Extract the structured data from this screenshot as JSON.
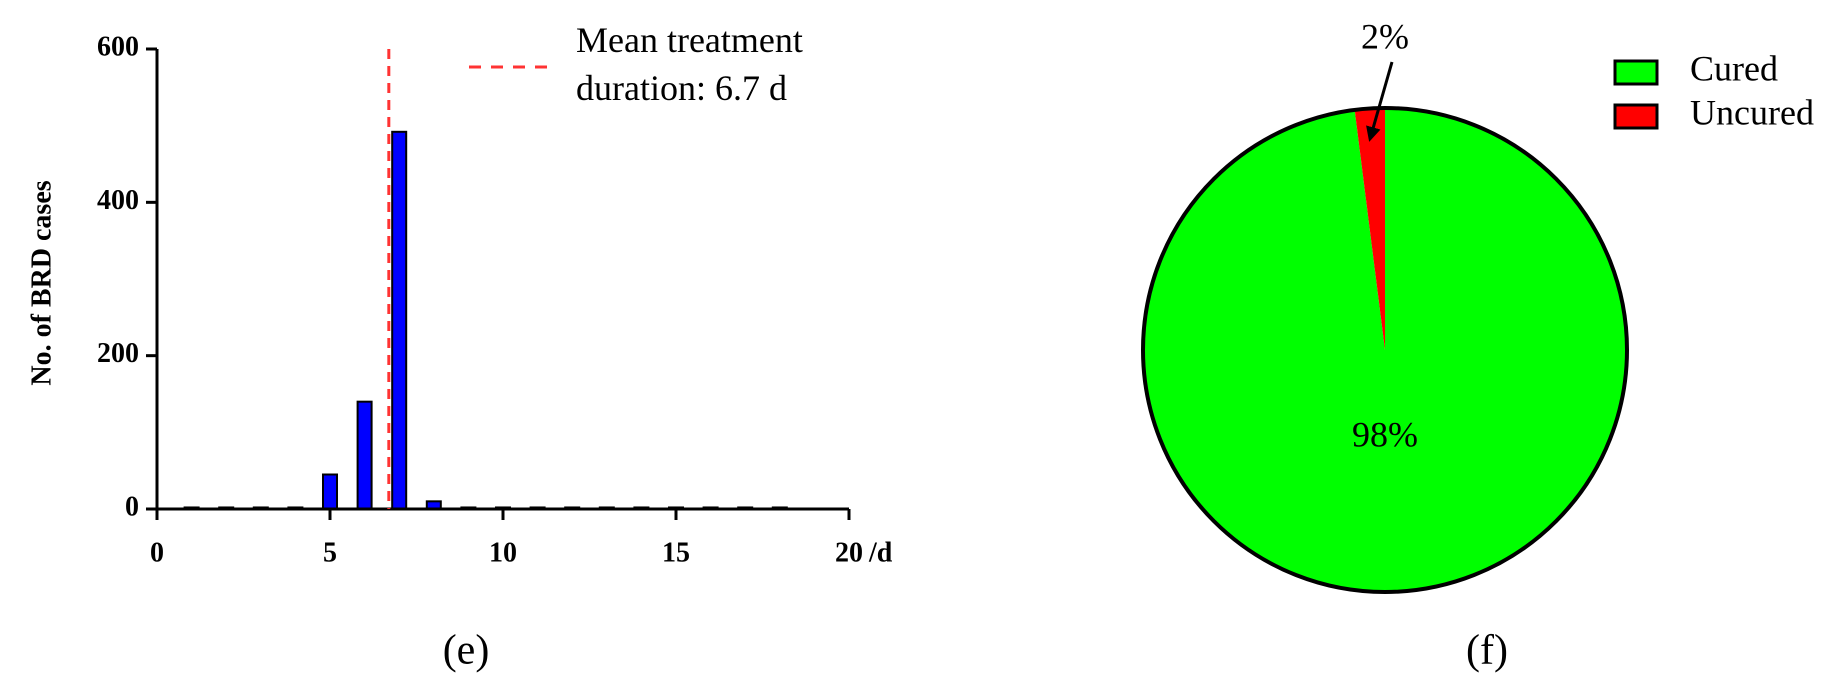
{
  "chart_data": [
    {
      "type": "bar",
      "ylabel": "No. of BRD cases",
      "xlabel": "/d",
      "caption": "(e)",
      "x": [
        1,
        2,
        3,
        4,
        5,
        6,
        7,
        8,
        9,
        10,
        11,
        12,
        13,
        14,
        15,
        16,
        17,
        18
      ],
      "values": [
        2,
        2,
        2,
        2,
        45,
        140,
        492,
        10,
        2,
        2,
        2,
        2,
        2,
        2,
        2,
        2,
        2,
        2
      ],
      "color": "#0000ff",
      "xlim": [
        0,
        20
      ],
      "xticks": [
        0,
        5,
        10,
        15,
        20
      ],
      "ylim": [
        0,
        600
      ],
      "yticks": [
        0,
        200,
        400,
        600
      ],
      "grid": false,
      "mean_line": {
        "value": 6.7,
        "label": "Mean treatment duration: 6.7 d",
        "color": "#ff3333"
      }
    },
    {
      "type": "pie",
      "caption": "(f)",
      "categories": [
        "Cured",
        "Uncured"
      ],
      "values": [
        98,
        2
      ],
      "value_labels": [
        "98%",
        "2%"
      ],
      "colors": [
        "#00ff00",
        "#ff0000"
      ],
      "legend": "upper right"
    }
  ]
}
